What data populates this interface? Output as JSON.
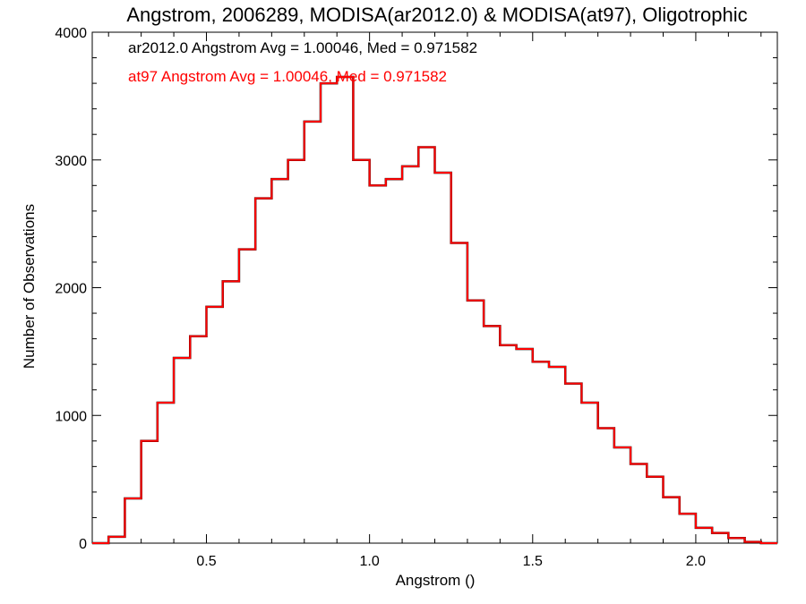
{
  "chart_data": {
    "type": "histogram-step",
    "title": "Angstrom, 2006289, MODISA(ar2012.0) & MODISA(at97), Oligotrophic",
    "xlabel": "Angstrom ()",
    "ylabel": "Number of Observations",
    "xlim": [
      0.15,
      2.25
    ],
    "ylim": [
      0,
      4000
    ],
    "xticks": [
      0.5,
      1.0,
      1.5,
      2.0
    ],
    "xtick_labels": [
      "0.5",
      "1.0",
      "1.5",
      "2.0"
    ],
    "yticks": [
      0,
      1000,
      2000,
      3000,
      4000
    ],
    "ytick_labels": [
      "0",
      "1000",
      "2000",
      "3000",
      "4000"
    ],
    "grid": false,
    "annotations": [
      {
        "text": "ar2012.0 Angstrom Avg = 1.00046, Med = 0.971582",
        "color": "#000000"
      },
      {
        "text": "at97 Angstrom Avg = 1.00046, Med = 0.971582",
        "color": "#ff0000"
      }
    ],
    "series": [
      {
        "name": "ar2012.0",
        "color": "#000000",
        "x": [
          0.15,
          0.2,
          0.25,
          0.3,
          0.35,
          0.4,
          0.45,
          0.5,
          0.55,
          0.6,
          0.65,
          0.7,
          0.75,
          0.8,
          0.85,
          0.9,
          0.95,
          1.0,
          1.05,
          1.1,
          1.15,
          1.2,
          1.25,
          1.3,
          1.35,
          1.4,
          1.45,
          1.5,
          1.55,
          1.6,
          1.65,
          1.7,
          1.75,
          1.8,
          1.85,
          1.9,
          1.95,
          2.0,
          2.05,
          2.1,
          2.15,
          2.2,
          2.25
        ],
        "y": [
          0,
          50,
          350,
          800,
          1100,
          1450,
          1620,
          1850,
          2050,
          2300,
          2700,
          2850,
          3000,
          3300,
          3600,
          3650,
          3000,
          2800,
          2850,
          2950,
          3100,
          2900,
          2350,
          1900,
          1700,
          1550,
          1520,
          1420,
          1380,
          1250,
          1100,
          900,
          750,
          620,
          520,
          360,
          230,
          120,
          80,
          40,
          10,
          0,
          0
        ]
      },
      {
        "name": "at97",
        "color": "#ff0000",
        "x": [
          0.15,
          0.2,
          0.25,
          0.3,
          0.35,
          0.4,
          0.45,
          0.5,
          0.55,
          0.6,
          0.65,
          0.7,
          0.75,
          0.8,
          0.85,
          0.9,
          0.95,
          1.0,
          1.05,
          1.1,
          1.15,
          1.2,
          1.25,
          1.3,
          1.35,
          1.4,
          1.45,
          1.5,
          1.55,
          1.6,
          1.65,
          1.7,
          1.75,
          1.8,
          1.85,
          1.9,
          1.95,
          2.0,
          2.05,
          2.1,
          2.15,
          2.2,
          2.25
        ],
        "y": [
          0,
          50,
          350,
          800,
          1100,
          1450,
          1620,
          1850,
          2050,
          2300,
          2700,
          2850,
          3000,
          3300,
          3600,
          3650,
          3000,
          2800,
          2850,
          2950,
          3100,
          2900,
          2350,
          1900,
          1700,
          1550,
          1520,
          1420,
          1380,
          1250,
          1100,
          900,
          750,
          620,
          520,
          360,
          230,
          120,
          80,
          40,
          10,
          0,
          0
        ]
      }
    ]
  }
}
